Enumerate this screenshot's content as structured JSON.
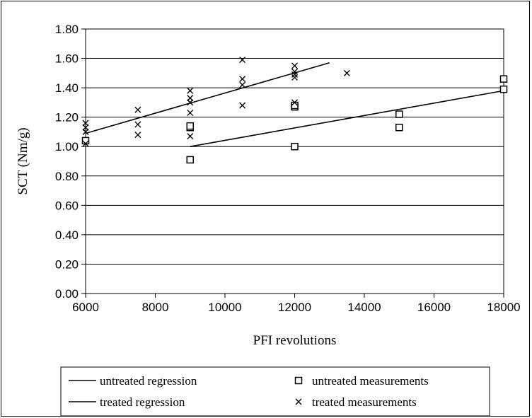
{
  "chart_data": {
    "type": "scatter",
    "xlabel": "PFI revolutions",
    "ylabel": "SCT (Nm/g)",
    "xlim": [
      6000,
      18000
    ],
    "ylim": [
      0,
      1.8
    ],
    "x_ticks": [
      "6000",
      "8000",
      "10000",
      "12000",
      "14000",
      "16000",
      "18000"
    ],
    "y_ticks": [
      "0.00",
      "0.20",
      "0.40",
      "0.60",
      "0.80",
      "1.00",
      "1.20",
      "1.40",
      "1.60",
      "1.80"
    ],
    "grid": "horizontal",
    "legend_position": "bottom",
    "series": [
      {
        "name": "untreated measurements",
        "marker": "square",
        "points": [
          [
            6000,
            1.04
          ],
          [
            9000,
            0.91
          ],
          [
            9000,
            1.13
          ],
          [
            9000,
            1.14
          ],
          [
            12000,
            1.0
          ],
          [
            12000,
            1.27
          ],
          [
            12000,
            1.28
          ],
          [
            15000,
            1.13
          ],
          [
            15000,
            1.22
          ],
          [
            18000,
            1.39
          ],
          [
            18000,
            1.46
          ]
        ]
      },
      {
        "name": "treated measurements",
        "marker": "cross",
        "points": [
          [
            6000,
            1.02
          ],
          [
            6000,
            1.1
          ],
          [
            6000,
            1.13
          ],
          [
            6000,
            1.16
          ],
          [
            7500,
            1.08
          ],
          [
            7500,
            1.15
          ],
          [
            7500,
            1.25
          ],
          [
            9000,
            1.07
          ],
          [
            9000,
            1.23
          ],
          [
            9000,
            1.3
          ],
          [
            9000,
            1.33
          ],
          [
            9000,
            1.38
          ],
          [
            10500,
            1.28
          ],
          [
            10500,
            1.42
          ],
          [
            10500,
            1.46
          ],
          [
            10500,
            1.59
          ],
          [
            12000,
            1.3
          ],
          [
            12000,
            1.47
          ],
          [
            12000,
            1.49
          ],
          [
            12000,
            1.51
          ],
          [
            12000,
            1.55
          ],
          [
            13500,
            1.5
          ]
        ]
      },
      {
        "name": "untreated regression",
        "type": "line",
        "points": [
          [
            9000,
            1.0
          ],
          [
            18000,
            1.38
          ]
        ]
      },
      {
        "name": "treated regression",
        "type": "line",
        "points": [
          [
            6000,
            1.09
          ],
          [
            13000,
            1.57
          ]
        ]
      }
    ]
  }
}
